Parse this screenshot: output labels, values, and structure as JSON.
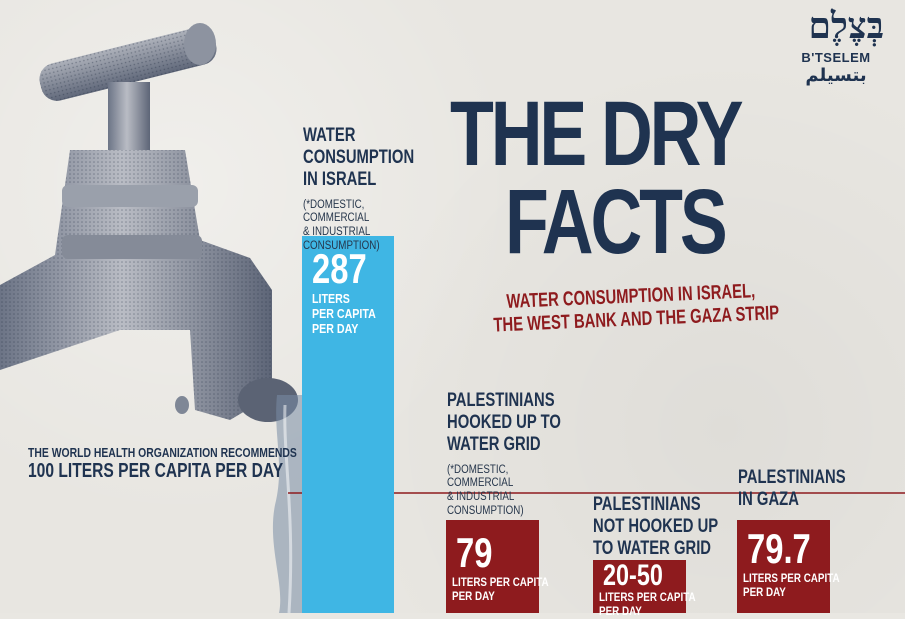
{
  "logo": {
    "hebrew": "בְּצֶלֶם",
    "latin": "B'TSELEM",
    "arabic": "بتسيلم"
  },
  "title": {
    "line1": "THE DRY",
    "line2": "FACTS"
  },
  "subtitle": {
    "line1": "WATER CONSUMPTION IN ISRAEL,",
    "line2": "THE WEST BANK AND THE GAZA STRIP"
  },
  "who_recommendation": {
    "line1": "THE WORLD HEALTH ORGANIZATION RECOMMENDS",
    "line2": "100 LITERS PER CAPITA PER DAY"
  },
  "colors": {
    "israel_bar": "#3fb6e4",
    "palestinian_bars": "#8e1b1e",
    "title": "#1f3350",
    "subtitle": "#8e1b1e",
    "reference_line": "#8e1b1e"
  },
  "chart_data": {
    "type": "bar",
    "title": "THE DRY FACTS",
    "subtitle": "WATER CONSUMPTION IN ISRAEL, THE WEST BANK AND THE GAZA STRIP",
    "unit": "LITERS PER CAPITA PER DAY",
    "reference_line": {
      "value": 100,
      "label": "THE WORLD HEALTH ORGANIZATION RECOMMENDS 100 LITERS PER CAPITA PER DAY"
    },
    "bars": [
      {
        "label_lines": [
          "WATER",
          "CONSUMPTION",
          "IN ISRAEL"
        ],
        "note_lines": [
          "(*DOMESTIC,",
          "COMMERCIAL",
          "& INDUSTRIAL",
          "CONSUMPTION)"
        ],
        "value": 287,
        "value_label": "287",
        "unit_lines": [
          "LITERS",
          "PER CAPITA",
          "PER DAY"
        ],
        "color": "#3fb6e4"
      },
      {
        "label_lines": [
          "PALESTINIANS",
          "HOOKED UP TO",
          "WATER GRID"
        ],
        "note_lines": [
          "(*DOMESTIC,",
          "COMMERCIAL",
          "& INDUSTRIAL",
          "CONSUMPTION)"
        ],
        "value": 79,
        "value_label": "79",
        "unit_lines": [
          "LITERS PER CAPITA",
          "PER DAY"
        ],
        "color": "#8e1b1e"
      },
      {
        "label_lines": [
          "PALESTINIANS",
          "NOT HOOKED UP",
          "TO WATER GRID"
        ],
        "note_lines": [],
        "value_range": [
          20,
          50
        ],
        "value_label": "20-50",
        "unit_lines": [
          "LITERS PER CAPITA",
          "PER DAY"
        ],
        "color": "#8e1b1e"
      },
      {
        "label_lines": [
          "PALESTINIANS",
          "IN GAZA"
        ],
        "note_lines": [],
        "value": 79.7,
        "value_label": "79.7",
        "unit_lines": [
          "LITERS PER CAPITA",
          "PER DAY"
        ],
        "color": "#8e1b1e"
      }
    ]
  }
}
